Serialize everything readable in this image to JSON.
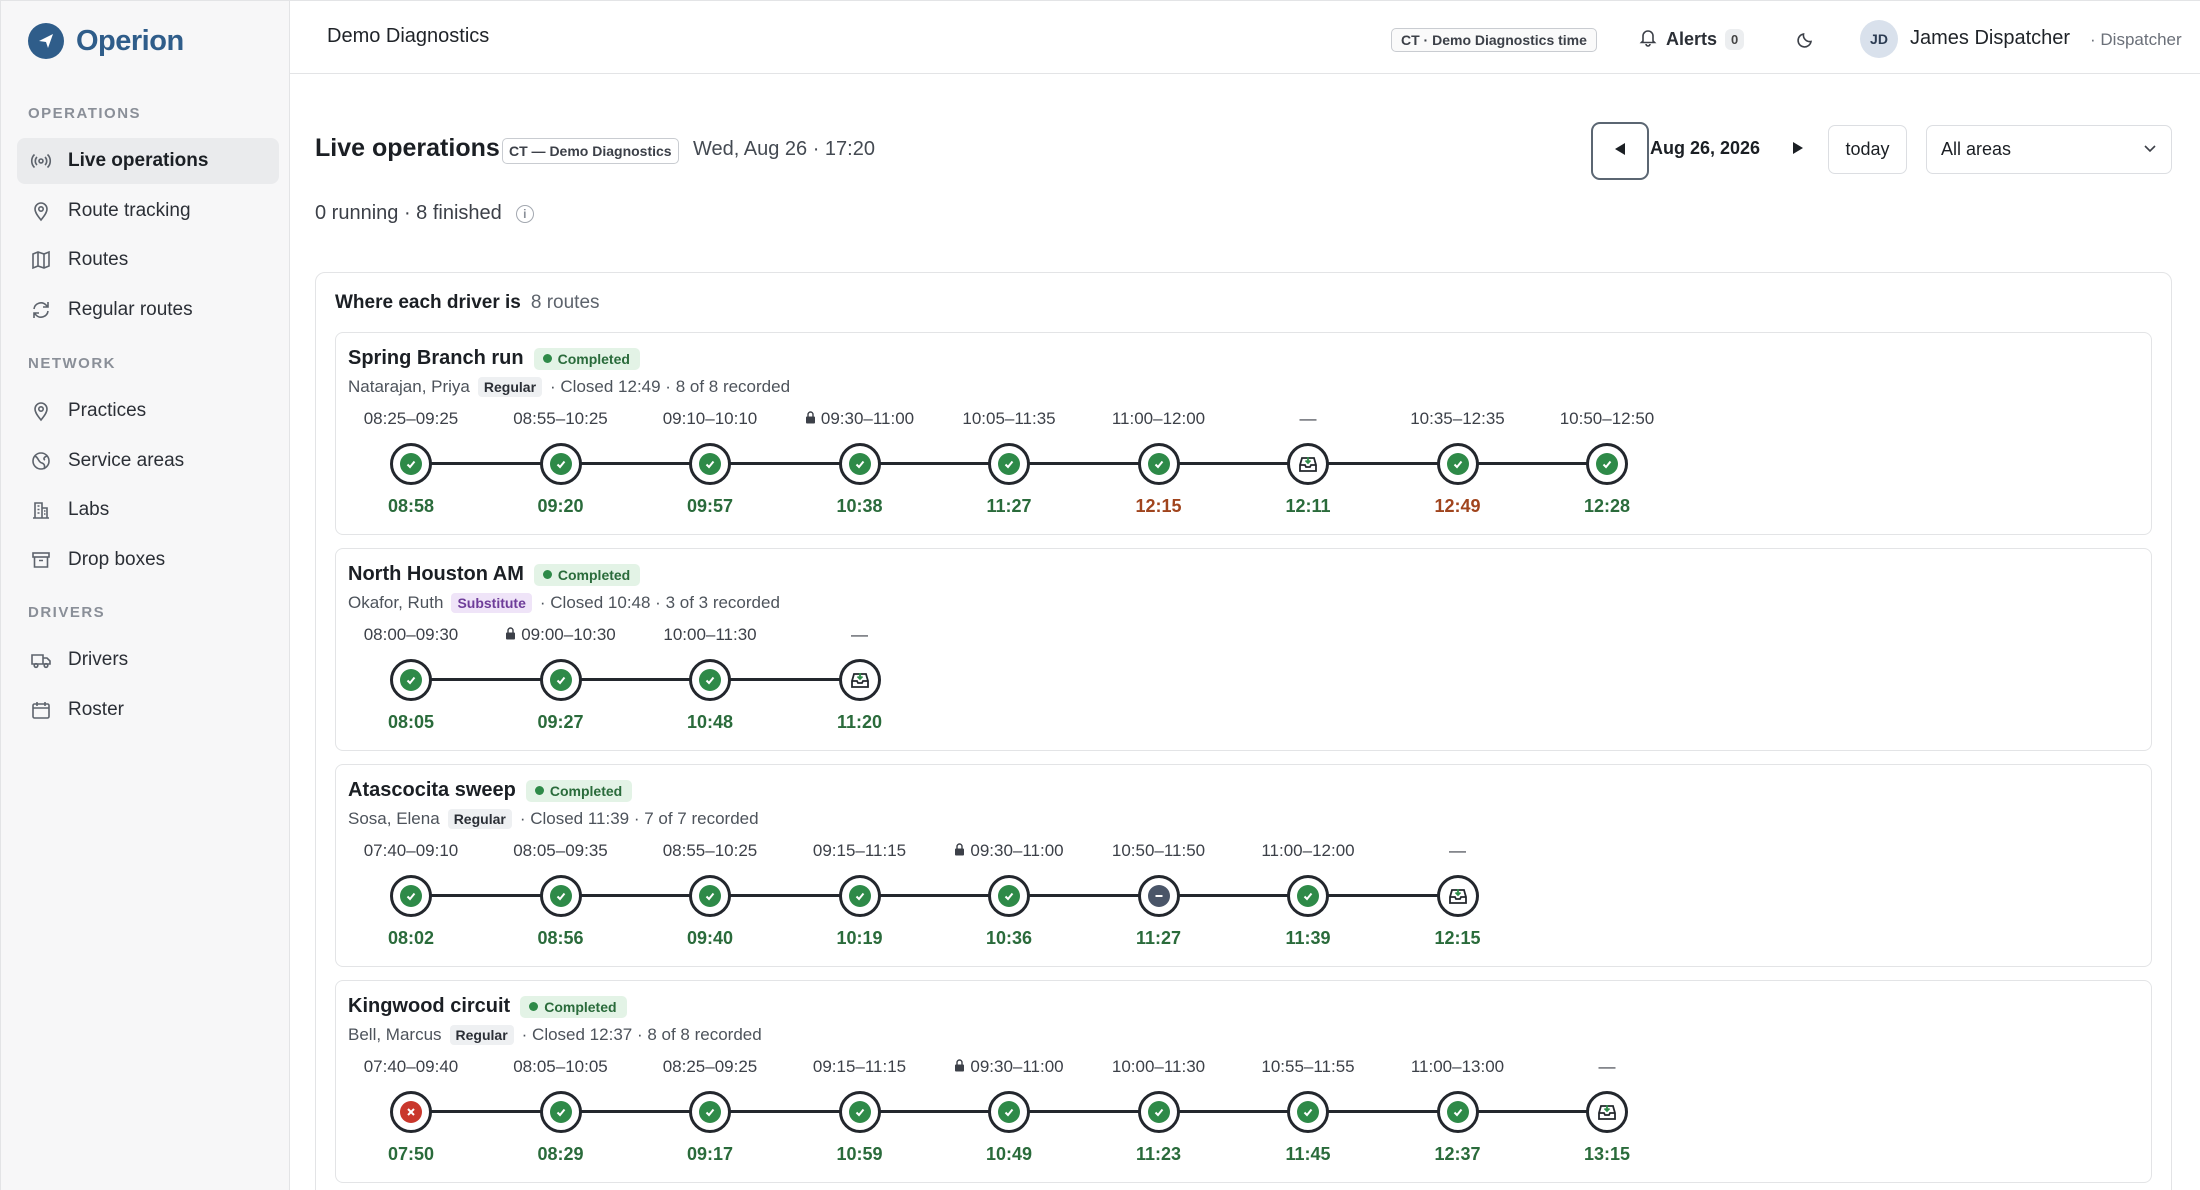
{
  "app": {
    "name": "Operion"
  },
  "sidebar": {
    "sections": [
      {
        "label": "OPERATIONS",
        "items": [
          {
            "label": "Live operations",
            "icon": "broadcast-icon",
            "active": true
          },
          {
            "label": "Route tracking",
            "icon": "map-pin-icon"
          },
          {
            "label": "Routes",
            "icon": "map-icon"
          },
          {
            "label": "Regular routes",
            "icon": "repeat-icon"
          }
        ]
      },
      {
        "label": "NETWORK",
        "items": [
          {
            "label": "Practices",
            "icon": "map-pin-icon"
          },
          {
            "label": "Service areas",
            "icon": "globe-icon"
          },
          {
            "label": "Labs",
            "icon": "building-icon"
          },
          {
            "label": "Drop boxes",
            "icon": "archive-icon"
          }
        ]
      },
      {
        "label": "DRIVERS",
        "items": [
          {
            "label": "Drivers",
            "icon": "truck-icon"
          },
          {
            "label": "Roster",
            "icon": "calendar-icon"
          }
        ]
      }
    ]
  },
  "topbar": {
    "org": "Demo Diagnostics",
    "tz_chip": "CT · Demo Diagnostics time",
    "alerts_label": "Alerts",
    "alerts_count": "0",
    "user_initials": "JD",
    "user_name": "James Dispatcher",
    "user_role": "· Dispatcher"
  },
  "page": {
    "title": "Live operations",
    "tz_chip": "CT — Demo Diagnostics",
    "datetime": "Wed, Aug 26 · 17:20",
    "summary": "0 running · 8 finished",
    "date_label": "Aug 26, 2026",
    "today_label": "today",
    "area_select": "All areas"
  },
  "panel": {
    "title": "Where each driver is",
    "count": "8 routes",
    "routes": [
      {
        "name": "Spring Branch run",
        "status": "Completed",
        "driver": "Natarajan, Priya",
        "tag": "Regular",
        "tag_kind": "regular",
        "meta": "· Closed 12:49 · 8 of 8 recorded",
        "stops": [
          {
            "window": "08:25–09:25",
            "time": "08:58",
            "kind": "ok"
          },
          {
            "window": "08:55–10:25",
            "time": "09:20",
            "kind": "ok"
          },
          {
            "window": "09:10–10:10",
            "time": "09:57",
            "kind": "ok"
          },
          {
            "window": "09:30–11:00",
            "time": "10:38",
            "kind": "ok",
            "locked": true
          },
          {
            "window": "10:05–11:35",
            "time": "11:27",
            "kind": "ok"
          },
          {
            "window": "11:00–12:00",
            "time": "12:15",
            "kind": "ok",
            "late": true
          },
          {
            "window": "—",
            "time": "12:11",
            "kind": "drop"
          },
          {
            "window": "10:35–12:35",
            "time": "12:49",
            "kind": "ok",
            "late": true
          },
          {
            "window": "10:50–12:50",
            "time": "12:28",
            "kind": "ok"
          }
        ]
      },
      {
        "name": "North Houston AM",
        "status": "Completed",
        "driver": "Okafor, Ruth",
        "tag": "Substitute",
        "tag_kind": "sub",
        "meta": "· Closed 10:48 · 3 of 3 recorded",
        "stops": [
          {
            "window": "08:00–09:30",
            "time": "08:05",
            "kind": "ok"
          },
          {
            "window": "09:00–10:30",
            "time": "09:27",
            "kind": "ok",
            "locked": true
          },
          {
            "window": "10:00–11:30",
            "time": "10:48",
            "kind": "ok"
          },
          {
            "window": "—",
            "time": "11:20",
            "kind": "drop"
          }
        ]
      },
      {
        "name": "Atascocita sweep",
        "status": "Completed",
        "driver": "Sosa, Elena",
        "tag": "Regular",
        "tag_kind": "regular",
        "meta": "· Closed 11:39 · 7 of 7 recorded",
        "stops": [
          {
            "window": "07:40–09:10",
            "time": "08:02",
            "kind": "ok"
          },
          {
            "window": "08:05–09:35",
            "time": "08:56",
            "kind": "ok"
          },
          {
            "window": "08:55–10:25",
            "time": "09:40",
            "kind": "ok"
          },
          {
            "window": "09:15–11:15",
            "time": "10:19",
            "kind": "ok"
          },
          {
            "window": "09:30–11:00",
            "time": "10:36",
            "kind": "ok",
            "locked": true
          },
          {
            "window": "10:50–11:50",
            "time": "11:27",
            "kind": "skip"
          },
          {
            "window": "11:00–12:00",
            "time": "11:39",
            "kind": "ok"
          },
          {
            "window": "—",
            "time": "12:15",
            "kind": "drop"
          }
        ]
      },
      {
        "name": "Kingwood circuit",
        "status": "Completed",
        "driver": "Bell, Marcus",
        "tag": "Regular",
        "tag_kind": "regular",
        "meta": "· Closed 12:37 · 8 of 8 recorded",
        "stops": [
          {
            "window": "07:40–09:40",
            "time": "07:50",
            "kind": "fail"
          },
          {
            "window": "08:05–10:05",
            "time": "08:29",
            "kind": "ok"
          },
          {
            "window": "08:25–09:25",
            "time": "09:17",
            "kind": "ok"
          },
          {
            "window": "09:15–11:15",
            "time": "10:59",
            "kind": "ok"
          },
          {
            "window": "09:30–11:00",
            "time": "10:49",
            "kind": "ok",
            "locked": true
          },
          {
            "window": "10:00–11:30",
            "time": "11:23",
            "kind": "ok"
          },
          {
            "window": "10:55–11:55",
            "time": "11:45",
            "kind": "ok"
          },
          {
            "window": "11:00–13:00",
            "time": "12:37",
            "kind": "ok"
          },
          {
            "window": "—",
            "time": "13:15",
            "kind": "drop"
          }
        ]
      }
    ]
  },
  "colors": {
    "accent": "#2f5d8a",
    "ok": "#2e8a48",
    "late": "#a0441d",
    "fail": "#c9372c"
  }
}
